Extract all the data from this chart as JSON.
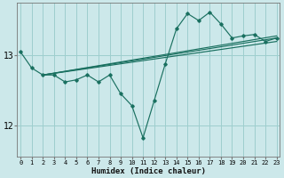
{
  "xlabel": "Humidex (Indice chaleur)",
  "bg_color": "#cce8ea",
  "grid_color": "#9ecece",
  "line_color": "#1a7060",
  "x_ticks": [
    0,
    1,
    2,
    3,
    4,
    5,
    6,
    7,
    8,
    9,
    10,
    11,
    12,
    13,
    14,
    15,
    16,
    17,
    18,
    19,
    20,
    21,
    22,
    23
  ],
  "y_ticks": [
    12,
    13
  ],
  "ylim": [
    11.55,
    13.75
  ],
  "xlim": [
    -0.3,
    23.3
  ],
  "main_line_x": [
    0,
    1,
    2,
    3,
    4,
    5,
    6,
    7,
    8,
    9,
    10,
    11,
    12,
    13,
    14,
    15,
    16,
    17,
    18,
    19,
    20,
    21,
    22,
    23
  ],
  "main_line_y": [
    13.05,
    12.82,
    12.72,
    12.72,
    12.62,
    12.65,
    12.72,
    12.62,
    12.72,
    12.45,
    12.28,
    11.82,
    12.35,
    12.88,
    13.38,
    13.6,
    13.5,
    13.62,
    13.45,
    13.25,
    13.28,
    13.3,
    13.2,
    13.25
  ],
  "trend_lines": [
    {
      "x": [
        2,
        23
      ],
      "y": [
        12.72,
        13.25
      ]
    },
    {
      "x": [
        2,
        23
      ],
      "y": [
        12.72,
        13.2
      ]
    },
    {
      "x": [
        2,
        23
      ],
      "y": [
        12.72,
        13.28
      ]
    }
  ]
}
